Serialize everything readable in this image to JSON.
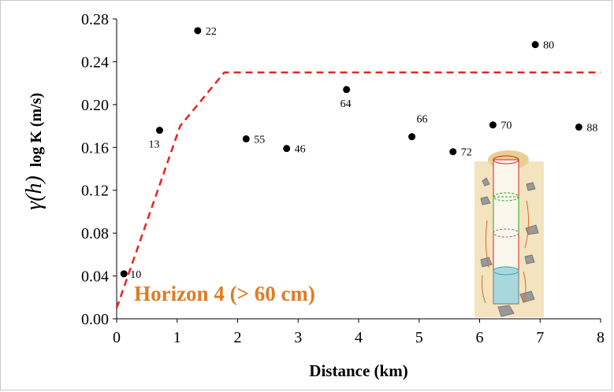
{
  "chart_data": {
    "type": "scatter",
    "x_label": "Distance (km)",
    "y_label_symbol": "γ(h)",
    "y_label": "log K (m/s)",
    "annotation": "Horizon 4 (> 60 cm)",
    "xlim": [
      0,
      8
    ],
    "xticks": [
      0,
      1,
      2,
      3,
      4,
      5,
      6,
      7,
      8
    ],
    "ylim": [
      0,
      0.28
    ],
    "yticks": [
      {
        "value": 0,
        "label": "0.00"
      },
      {
        "value": 0.04,
        "label": "0.04"
      },
      {
        "value": 0.08,
        "label": "0.08"
      },
      {
        "value": 0.12,
        "label": "0.12"
      },
      {
        "value": 0.16,
        "label": "0.16"
      },
      {
        "value": 0.2,
        "label": "0.20"
      },
      {
        "value": 0.24,
        "label": "0.24"
      },
      {
        "value": 0.28,
        "label": "0.28"
      }
    ],
    "series": [
      {
        "type": "scatter",
        "color": "#000000",
        "x": [
          0.12,
          0.71,
          1.34,
          2.14,
          2.81,
          3.8,
          4.88,
          5.56,
          6.22,
          6.92,
          7.64
        ],
        "values": [
          0.042,
          0.176,
          0.269,
          0.168,
          0.159,
          0.214,
          0.17,
          0.156,
          0.181,
          0.256,
          0.179
        ],
        "point_labels": [
          10,
          13,
          22,
          55,
          46,
          64,
          66,
          72,
          70,
          80,
          88
        ]
      },
      {
        "type": "line",
        "color": "#e8231f",
        "dashed": true,
        "x": [
          0,
          1.05,
          1.78,
          8
        ],
        "values": [
          0.01,
          0.18,
          0.23,
          0.23
        ]
      }
    ]
  }
}
